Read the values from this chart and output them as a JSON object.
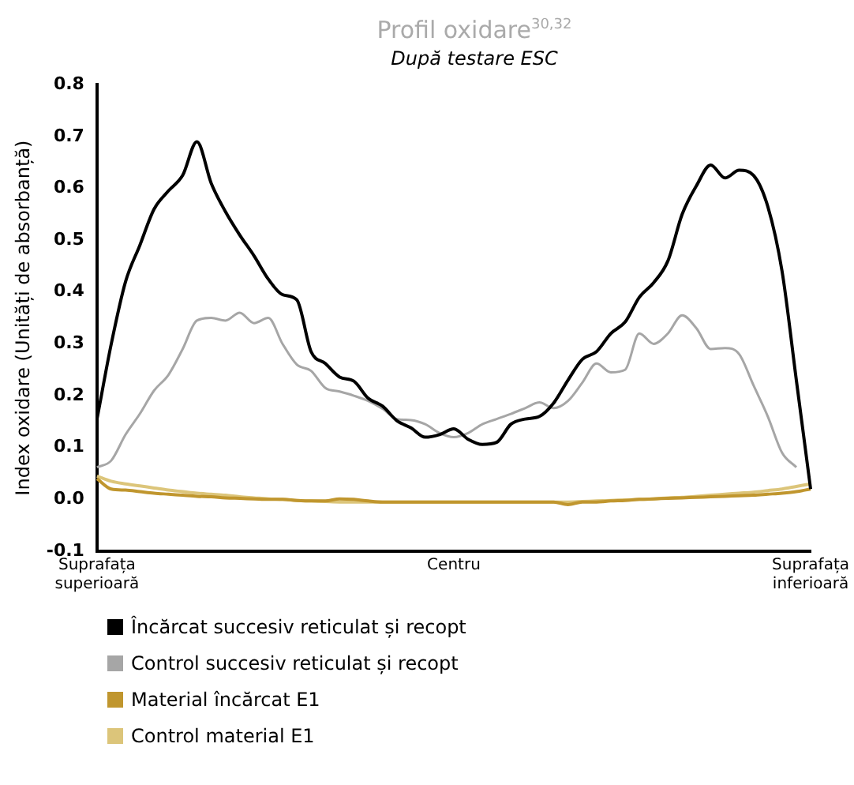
{
  "chart_data": {
    "type": "line",
    "title": "Profil oxidare$^{30,32}$",
    "subtitle": "După testare ESC",
    "ylabel": "Index oxidare (Unități de absorbanță)",
    "categories": [
      "Suprafața superioară",
      null,
      null,
      null,
      null,
      null,
      null,
      null,
      null,
      null,
      null,
      null,
      null,
      null,
      null,
      null,
      null,
      null,
      null,
      null,
      null,
      null,
      null,
      null,
      null,
      "Centru",
      null,
      null,
      null,
      null,
      null,
      null,
      null,
      null,
      null,
      null,
      null,
      null,
      null,
      null,
      null,
      null,
      null,
      null,
      null,
      null,
      null,
      null,
      null,
      null,
      "Suprafața inferioară"
    ],
    "ylim": [
      -0.1,
      0.8
    ],
    "yticks": [
      -0.1,
      {
        "value": 0,
        "label": "0.0"
      },
      0.1,
      0.2,
      0.3,
      0.4,
      0.5,
      0.6,
      0.7,
      0.8
    ],
    "grid": false,
    "legend": "bottom",
    "series": [
      {
        "name": "Încărcat succesiv reticulat și recopt",
        "color": "#000000",
        "values": [
          0.155,
          0.3,
          0.42,
          0.49,
          0.56,
          0.595,
          0.625,
          0.69,
          0.61,
          0.555,
          0.51,
          0.47,
          0.425,
          0.395,
          0.385,
          0.285,
          0.262,
          0.236,
          0.228,
          0.195,
          0.18,
          0.152,
          0.138,
          0.12,
          0.125,
          0.136,
          0.116,
          0.106,
          0.11,
          0.145,
          0.155,
          0.16,
          0.186,
          0.23,
          0.27,
          0.285,
          0.32,
          0.342,
          0.39,
          0.418,
          0.46,
          0.55,
          0.605,
          0.645,
          0.62,
          0.635,
          0.625,
          0.565,
          0.44,
          0.23,
          0.02
        ]
      },
      {
        "name": "Control succesiv reticulat și recopt",
        "color": "#a6a6a6",
        "values": [
          0.062,
          0.075,
          0.125,
          0.165,
          0.21,
          0.24,
          0.29,
          0.345,
          0.35,
          0.345,
          0.36,
          0.34,
          0.35,
          0.3,
          0.26,
          0.248,
          0.215,
          0.208,
          0.2,
          0.19,
          0.175,
          0.155,
          0.153,
          0.145,
          0.128,
          0.12,
          0.128,
          0.145,
          0.155,
          0.165,
          0.176,
          0.187,
          0.176,
          0.19,
          0.225,
          0.262,
          0.245,
          0.25,
          0.32,
          0.3,
          0.32,
          0.355,
          0.33,
          0.29,
          0.292,
          0.28,
          0.22,
          0.16,
          0.09,
          0.062,
          null
        ]
      },
      {
        "name": "Material încărcat E1",
        "color": "#c0962e",
        "values": [
          0.04,
          0.02,
          0.018,
          0.015,
          0.012,
          0.01,
          0.008,
          0.006,
          0.005,
          0.003,
          0.002,
          0.001,
          0,
          0,
          -0.002,
          -0.003,
          -0.003,
          0.001,
          0,
          -0.003,
          -0.005,
          -0.005,
          -0.005,
          -0.005,
          -0.005,
          -0.005,
          -0.005,
          -0.005,
          -0.005,
          -0.005,
          -0.005,
          -0.005,
          -0.005,
          -0.01,
          -0.005,
          -0.005,
          -0.003,
          -0.002,
          0,
          0.001,
          0.002,
          0.003,
          0.004,
          0.005,
          0.006,
          0.007,
          0.008,
          0.01,
          0.012,
          0.015,
          0.02
        ]
      },
      {
        "name": "Control material E1",
        "color": "#dcc57a",
        "values": [
          0.045,
          0.035,
          0.03,
          0.026,
          0.022,
          0.018,
          0.015,
          0.012,
          0.01,
          0.008,
          0.005,
          0.003,
          0.001,
          0,
          -0.002,
          -0.003,
          -0.004,
          -0.005,
          -0.005,
          -0.005,
          -0.005,
          -0.005,
          -0.005,
          -0.005,
          -0.005,
          -0.005,
          -0.005,
          -0.005,
          -0.005,
          -0.005,
          -0.005,
          -0.005,
          -0.005,
          -0.005,
          -0.004,
          -0.003,
          -0.002,
          -0.001,
          0,
          0.001,
          0.003,
          0.004,
          0.006,
          0.008,
          0.01,
          0.012,
          0.014,
          0.017,
          0.02,
          0.025,
          0.03
        ]
      }
    ]
  }
}
